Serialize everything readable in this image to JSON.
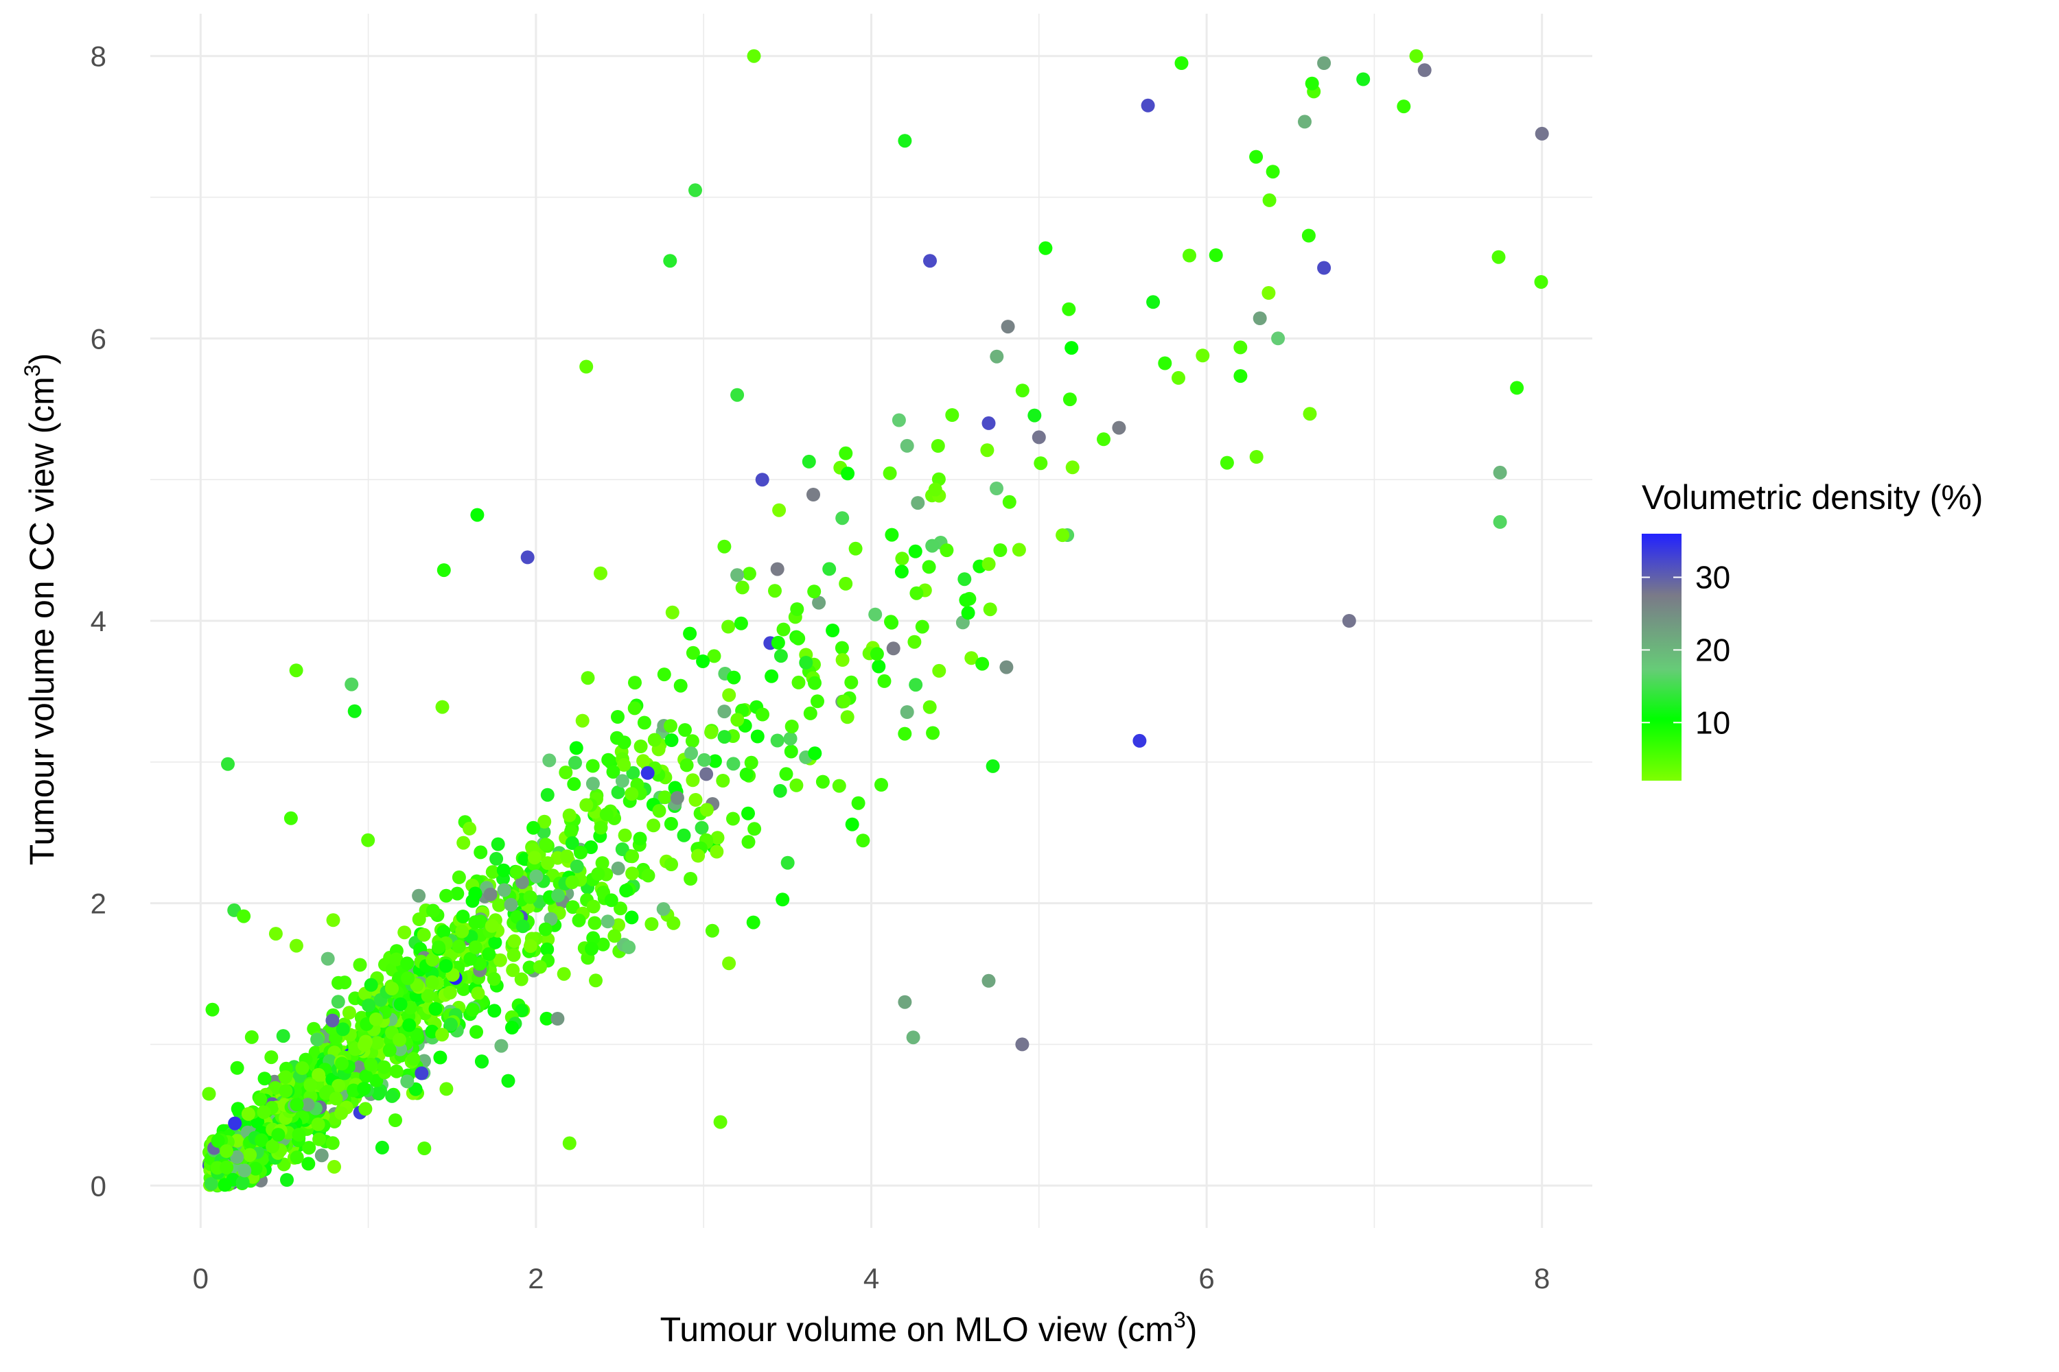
{
  "chart_data": {
    "type": "scatter",
    "title": "",
    "xlabel": "Tumour volume on MLO view",
    "xlabel_unit_base": "cm",
    "xlabel_unit_sup": "3",
    "ylabel": "Tumour volume on CC view",
    "ylabel_unit_base": "cm",
    "ylabel_unit_sup": "3",
    "xlim": [
      -0.3,
      8.3
    ],
    "ylim": [
      -0.3,
      8.3
    ],
    "x_ticks": [
      0,
      2,
      4,
      6,
      8
    ],
    "y_ticks": [
      0,
      2,
      4,
      6,
      8
    ],
    "grid": true,
    "legend": {
      "title": "Volumetric density (%)",
      "placement": "right",
      "ticks": [
        10,
        20,
        30
      ],
      "min": 2,
      "max": 36,
      "colors": {
        "low": "#7fff00",
        "mid_low": "#00ff00",
        "mid": "#66cc77",
        "mid_high": "#7a7a88",
        "high": "#2222ff"
      }
    },
    "point_count": 1500,
    "points_sample": [
      {
        "x": 0.05,
        "y": 0.65,
        "d": 4
      },
      {
        "x": 0.1,
        "y": 0.0,
        "d": 12
      },
      {
        "x": 3.3,
        "y": 8.0,
        "d": 4
      },
      {
        "x": 5.85,
        "y": 7.95,
        "d": 8
      },
      {
        "x": 6.7,
        "y": 7.95,
        "d": 22
      },
      {
        "x": 7.25,
        "y": 8.0,
        "d": 4
      },
      {
        "x": 7.3,
        "y": 7.9,
        "d": 28
      },
      {
        "x": 8.0,
        "y": 7.45,
        "d": 28
      },
      {
        "x": 5.65,
        "y": 7.65,
        "d": 32
      },
      {
        "x": 4.2,
        "y": 7.4,
        "d": 12
      },
      {
        "x": 2.95,
        "y": 7.05,
        "d": 14
      },
      {
        "x": 2.8,
        "y": 6.55,
        "d": 13
      },
      {
        "x": 4.35,
        "y": 6.55,
        "d": 32
      },
      {
        "x": 6.7,
        "y": 6.5,
        "d": 32
      },
      {
        "x": 2.3,
        "y": 5.8,
        "d": 4
      },
      {
        "x": 3.2,
        "y": 5.6,
        "d": 14
      },
      {
        "x": 3.35,
        "y": 5.0,
        "d": 32
      },
      {
        "x": 4.7,
        "y": 5.4,
        "d": 32
      },
      {
        "x": 5.0,
        "y": 5.3,
        "d": 28
      },
      {
        "x": 1.95,
        "y": 4.45,
        "d": 32
      },
      {
        "x": 1.65,
        "y": 4.75,
        "d": 10
      },
      {
        "x": 5.6,
        "y": 3.15,
        "d": 34
      },
      {
        "x": 4.2,
        "y": 1.3,
        "d": 22
      },
      {
        "x": 4.25,
        "y": 1.05,
        "d": 20
      },
      {
        "x": 4.7,
        "y": 1.45,
        "d": 22
      },
      {
        "x": 4.9,
        "y": 1.0,
        "d": 28
      },
      {
        "x": 3.1,
        "y": 0.45,
        "d": 4
      },
      {
        "x": 2.2,
        "y": 0.3,
        "d": 4
      },
      {
        "x": 6.85,
        "y": 4.0,
        "d": 28
      },
      {
        "x": 7.75,
        "y": 5.05,
        "d": 20
      },
      {
        "x": 7.75,
        "y": 4.7,
        "d": 16
      },
      {
        "x": 7.85,
        "y": 5.65,
        "d": 8
      },
      {
        "x": 0.9,
        "y": 3.55,
        "d": 16
      },
      {
        "x": 0.2,
        "y": 1.95,
        "d": 14
      }
    ]
  }
}
